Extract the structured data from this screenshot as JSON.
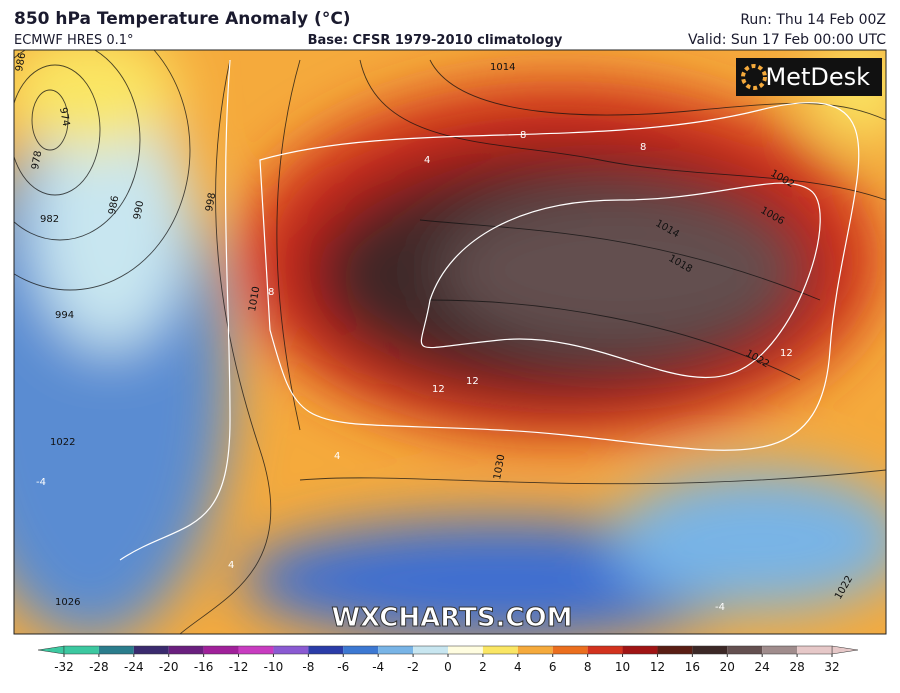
{
  "header": {
    "title": "850 hPa Temperature Anomaly (°C)",
    "model": "ECMWF HRES 0.1°",
    "base": "Base: CFSR 1979-2010 climatology",
    "run": "Run: Thu 14 Feb 00Z",
    "valid": "Valid: Sun 17 Feb 00:00 UTC"
  },
  "logo": "MetDesk",
  "watermark": "WXCHARTS.COM",
  "isobar_labels": [
    "986",
    "974",
    "978",
    "982",
    "986",
    "990",
    "998",
    "994",
    "1010",
    "1014",
    "1002",
    "1006",
    "1014",
    "1018",
    "1022",
    "1022",
    "1026",
    "1030",
    "1022"
  ],
  "anomaly_labels": [
    "8",
    "8",
    "4",
    "8",
    "12",
    "12",
    "12",
    "-4",
    "-4",
    "4",
    "4"
  ],
  "colorbar": {
    "ticks": [
      -32,
      -28,
      -24,
      -20,
      -16,
      -12,
      -10,
      -8,
      -6,
      -4,
      -2,
      0,
      2,
      4,
      6,
      8,
      10,
      12,
      16,
      20,
      24,
      28,
      32
    ],
    "colors": [
      "#3cc8a0",
      "#2a7d8c",
      "#3a2a6e",
      "#6a1f7e",
      "#a0209a",
      "#c83cc0",
      "#8a5ad2",
      "#2a3ca8",
      "#3c78d2",
      "#78b4e6",
      "#c8e6f0",
      "#fffde0",
      "#fae664",
      "#f5aa3c",
      "#eb6e1e",
      "#d2321e",
      "#a01414",
      "#5a1e14",
      "#3c2826",
      "#645050",
      "#a08c8c",
      "#e6c8c8"
    ]
  }
}
